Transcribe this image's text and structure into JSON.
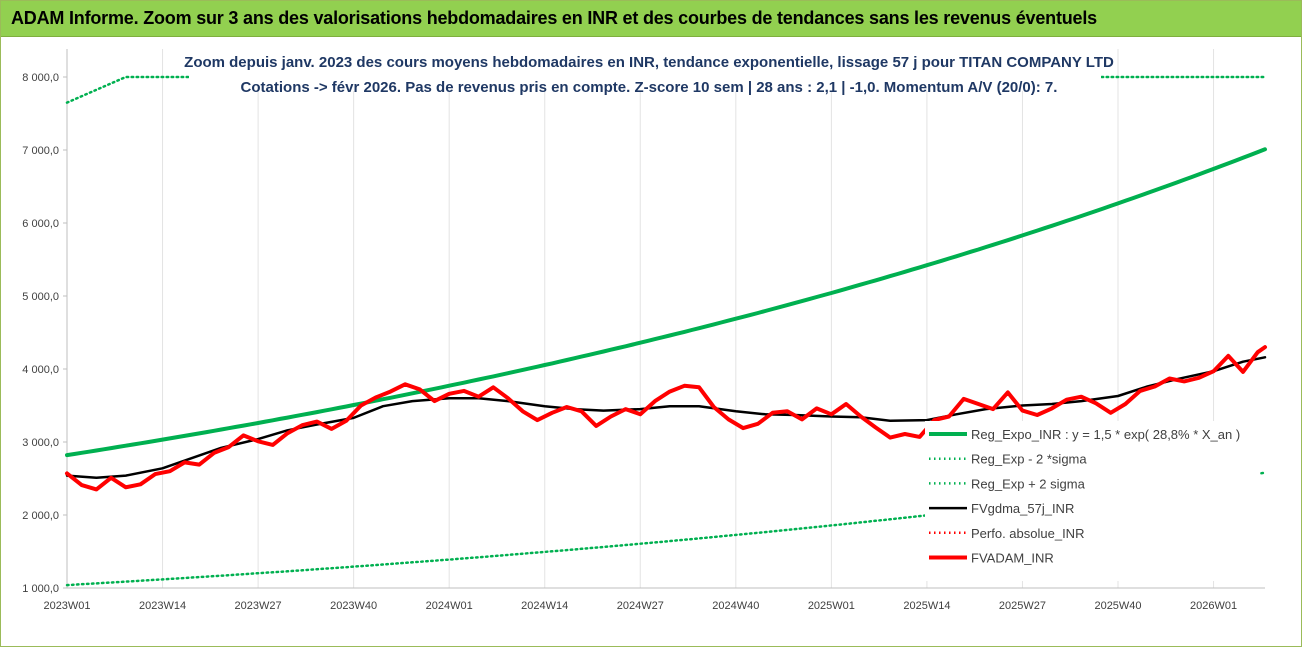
{
  "banner": {
    "title": "ADAM Informe. Zoom sur 3 ans des valorisations hebdomadaires en INR et des courbes de tendances sans les revenus éventuels"
  },
  "colors": {
    "banner_bg": "#92d050",
    "reg_expo": "#00b050",
    "smooth": "#000000",
    "price": "#ff0000",
    "title_text": "#1f3864"
  },
  "chart_data": {
    "type": "line",
    "title": "Zoom depuis janv. 2023 des cours moyens hebdomadaires en INR, tendance exponentielle, lissage 57 j pour TITAN COMPANY LTD",
    "subtitle": "Cotations -> févr 2026. Pas de revenus pris en compte. Z-score 10 sem | 28 ans : 2,1 | -1,0. Momentum A/V (20/0): 7.",
    "xlabel": "",
    "ylabel": "",
    "ylim": [
      1000,
      8000
    ],
    "y_ticks": [
      "1 000,0",
      "2 000,0",
      "3 000,0",
      "4 000,0",
      "5 000,0",
      "6 000,0",
      "7 000,0",
      "8 000,0"
    ],
    "x_ticks": [
      "2023W01",
      "2023W14",
      "2023W27",
      "2023W40",
      "2024W01",
      "2024W14",
      "2024W27",
      "2024W40",
      "2025W01",
      "2025W14",
      "2025W27",
      "2025W40",
      "2026W01"
    ],
    "x_range_weeks": [
      0,
      163
    ],
    "grid": "vertical",
    "legend_position": "right",
    "series": [
      {
        "name": "Reg_Expo_INR : y = 1,5 * exp( 28,8% *  X_an )",
        "style": "solid-thick",
        "color": "#00b050",
        "x": [
          0,
          163
        ],
        "y": [
          2820,
          7010
        ],
        "curve": "exponential"
      },
      {
        "name": "Reg_Exp - 2 *sigma",
        "style": "dotted",
        "color": "#00b050",
        "x": [
          0,
          163
        ],
        "y": [
          1040,
          2580
        ],
        "curve": "exponential"
      },
      {
        "name": "Reg_Exp + 2 sigma",
        "style": "dotted",
        "color": "#00b050",
        "x": [
          0,
          8,
          163
        ],
        "y": [
          7650,
          8000,
          8000
        ],
        "clipped_at_top": true
      },
      {
        "name": "FVgdma_57j_INR",
        "style": "solid",
        "color": "#000000",
        "x": [
          0,
          4,
          8,
          13,
          17,
          21,
          26,
          30,
          34,
          39,
          43,
          47,
          52,
          56,
          60,
          65,
          69,
          73,
          78,
          82,
          86,
          91,
          95,
          99,
          104,
          108,
          112,
          117,
          121,
          125,
          130,
          134,
          138,
          143,
          147,
          151,
          156,
          160,
          163
        ],
        "y": [
          2540,
          2510,
          2540,
          2640,
          2780,
          2920,
          3040,
          3160,
          3240,
          3330,
          3490,
          3560,
          3600,
          3600,
          3560,
          3490,
          3450,
          3430,
          3450,
          3490,
          3490,
          3420,
          3380,
          3370,
          3350,
          3340,
          3290,
          3300,
          3380,
          3450,
          3500,
          3520,
          3560,
          3630,
          3760,
          3860,
          3970,
          4100,
          4160
        ]
      },
      {
        "name": "Perfo. absolue_INR",
        "style": "dotted",
        "color": "#ff0000",
        "x": [],
        "y": []
      },
      {
        "name": "FVADAM_INR",
        "style": "solid-thick",
        "color": "#ff0000",
        "x": [
          0,
          2,
          4,
          6,
          8,
          10,
          12,
          14,
          16,
          18,
          20,
          22,
          24,
          26,
          28,
          30,
          32,
          34,
          36,
          38,
          40,
          42,
          44,
          46,
          48,
          50,
          52,
          54,
          56,
          58,
          60,
          62,
          64,
          66,
          68,
          70,
          72,
          74,
          76,
          78,
          80,
          82,
          84,
          86,
          88,
          90,
          92,
          94,
          96,
          98,
          100,
          102,
          104,
          106,
          108,
          110,
          112,
          114,
          116,
          118,
          120,
          122,
          124,
          126,
          128,
          130,
          132,
          134,
          136,
          138,
          140,
          142,
          144,
          146,
          148,
          150,
          152,
          154,
          156,
          158,
          160,
          162,
          163
        ],
        "y": [
          2570,
          2410,
          2350,
          2510,
          2380,
          2420,
          2560,
          2600,
          2720,
          2690,
          2850,
          2930,
          3090,
          3010,
          2960,
          3120,
          3230,
          3280,
          3180,
          3290,
          3500,
          3610,
          3690,
          3790,
          3720,
          3560,
          3660,
          3700,
          3620,
          3750,
          3600,
          3420,
          3300,
          3400,
          3480,
          3420,
          3220,
          3350,
          3450,
          3380,
          3560,
          3690,
          3770,
          3750,
          3480,
          3310,
          3190,
          3250,
          3400,
          3420,
          3310,
          3460,
          3380,
          3520,
          3350,
          3200,
          3060,
          3110,
          3070,
          3300,
          3350,
          3590,
          3520,
          3450,
          3680,
          3430,
          3370,
          3460,
          3580,
          3620,
          3530,
          3400,
          3520,
          3700,
          3760,
          3870,
          3830,
          3880,
          3970,
          4180,
          3960,
          4230,
          4300
        ]
      }
    ]
  }
}
